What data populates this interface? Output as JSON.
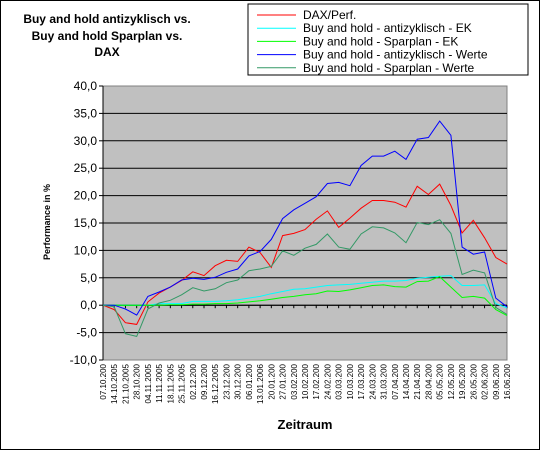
{
  "chart_data": {
    "type": "line",
    "title_lines": [
      "Buy and hold antizyklisch vs.",
      "Buy and hold Sparplan vs.",
      "DAX"
    ],
    "xlabel": "Zeitraum",
    "ylabel": "Performance in %",
    "ylim": [
      -10,
      40
    ],
    "yticks": [
      "-10,0",
      "-5,0",
      "0,0",
      "5,0",
      "10,0",
      "15,0",
      "20,0",
      "25,0",
      "30,0",
      "35,0",
      "40,0"
    ],
    "ytick_values": [
      -10,
      -5,
      0,
      5,
      10,
      15,
      20,
      25,
      30,
      35,
      40
    ],
    "grid": true,
    "legend_position": "top-right",
    "categories": [
      "07.10.200",
      "14.10.2005",
      "21.10.2005",
      "28.10.200",
      "04.11.2005",
      "11.11.2005",
      "18.11.2005",
      "25.11.2005",
      "02.12.200",
      "09.12.200",
      "16.12.2005",
      "23.12.200",
      "30.12.200",
      "06.01.200",
      "13.01.2006",
      "20.01.200",
      "27.01.200",
      "03.02.200",
      "10.02.200",
      "17.02.200",
      "24.02.200",
      "03.03.200",
      "10.03.200",
      "17.03.200",
      "24.03.200",
      "31.03.200",
      "07.04.200",
      "14.04.200",
      "21.04.200",
      "28.04.200",
      "05.05.200",
      "12.05.200",
      "19.05.200",
      "26.05.200",
      "02.06.200",
      "09.06.200",
      "16.06.200"
    ],
    "series": [
      {
        "name": "DAX/Perf.",
        "color": "#ff0000",
        "values": [
          0,
          -0.8,
          -3.2,
          -3.5,
          0.6,
          2.2,
          3.3,
          4.5,
          6.1,
          5.4,
          7.2,
          8.2,
          8.0,
          10.6,
          9.6,
          6.9,
          12.7,
          13.1,
          13.8,
          15.7,
          17.2,
          14.2,
          15.9,
          17.7,
          19.1,
          19.1,
          18.8,
          17.9,
          21.7,
          20.2,
          22.1,
          18.2,
          13.2,
          15.5,
          12.3,
          8.7,
          7.5
        ]
      },
      {
        "name": "Buy and hold - antizyklisch - EK",
        "color": "#00ffff",
        "values": [
          0,
          0,
          0,
          0,
          0,
          0.3,
          0.3,
          0.3,
          0.7,
          0.7,
          0.7,
          0.8,
          1.0,
          1.3,
          1.6,
          2.1,
          2.5,
          2.9,
          3.0,
          3.3,
          3.6,
          3.7,
          3.8,
          4.0,
          4.2,
          4.4,
          4.4,
          4.5,
          4.9,
          5.1,
          5.3,
          5.4,
          3.6,
          3.6,
          3.7,
          0.3,
          -0.5
        ]
      },
      {
        "name": "Buy and hold - Sparplan - EK",
        "color": "#00ff00",
        "values": [
          0,
          0,
          0,
          0,
          0,
          0,
          0.1,
          0.1,
          0.2,
          0.2,
          0.3,
          0.3,
          0.4,
          0.6,
          0.8,
          1.1,
          1.4,
          1.6,
          1.9,
          2.1,
          2.6,
          2.5,
          2.8,
          3.2,
          3.6,
          3.7,
          3.4,
          3.3,
          4.3,
          4.4,
          5.2,
          3.3,
          1.4,
          1.6,
          1.3,
          -0.8,
          -1.9
        ]
      },
      {
        "name": "Buy and hold - antizyklisch - Werte",
        "color": "#0000ff",
        "values": [
          0,
          0,
          -0.7,
          -1.8,
          1.6,
          2.4,
          3.3,
          4.6,
          4.9,
          4.7,
          5.1,
          6.0,
          6.6,
          9.0,
          9.8,
          12.0,
          15.8,
          17.4,
          18.6,
          19.8,
          22.2,
          22.4,
          21.8,
          25.5,
          27.2,
          27.2,
          28.1,
          26.6,
          30.3,
          30.6,
          33.6,
          31.0,
          10.6,
          9.3,
          9.7,
          1.3,
          -0.3
        ]
      },
      {
        "name": "Buy and hold - Sparplan - Werte",
        "color": "#339966",
        "values": [
          0,
          -0.3,
          -5.2,
          -5.7,
          -0.7,
          0.4,
          0.9,
          1.9,
          3.2,
          2.6,
          3.0,
          4.1,
          4.6,
          6.3,
          6.6,
          7.1,
          9.9,
          9.1,
          10.4,
          11.1,
          13.0,
          10.6,
          10.2,
          13.0,
          14.3,
          14.1,
          13.2,
          11.4,
          15.1,
          14.7,
          15.6,
          13.1,
          5.6,
          6.4,
          5.9,
          -0.4,
          -1.7
        ]
      }
    ]
  }
}
